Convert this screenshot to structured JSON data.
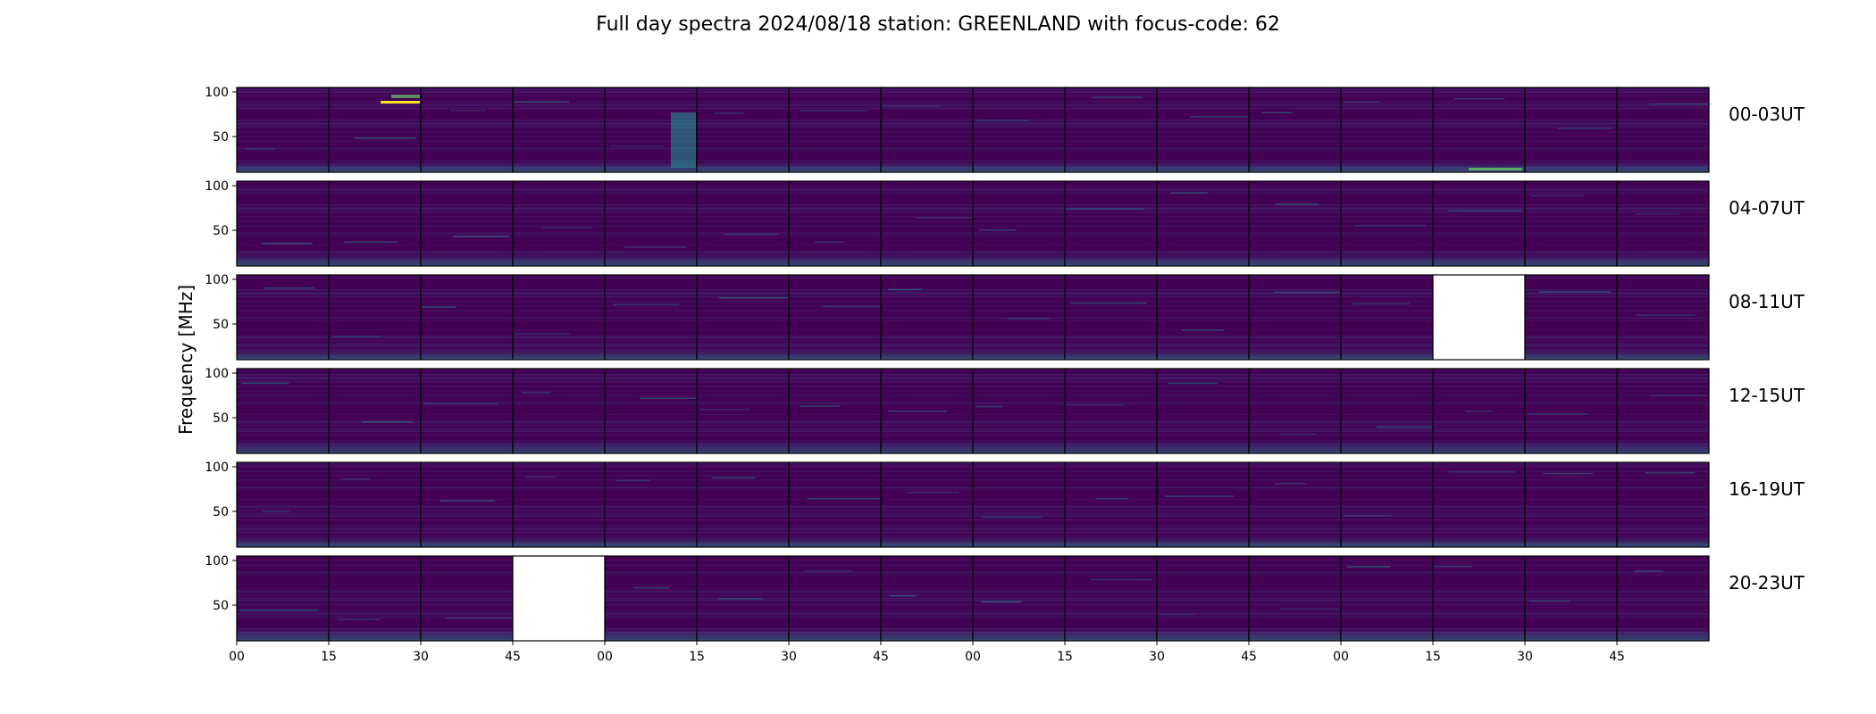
{
  "chart_data": {
    "type": "heatmap",
    "title": "Full day spectra 2024/08/18 station: GREENLAND with focus-code: 62",
    "ylabel": "Frequency [MHz]",
    "xlabel": "",
    "ylim": [
      10,
      105
    ],
    "y_ticks": [
      "100",
      "50"
    ],
    "y_tick_values": [
      100,
      50
    ],
    "x_ticks": [
      "00",
      "15",
      "30",
      "45",
      "00",
      "15",
      "30",
      "45",
      "00",
      "15",
      "30",
      "45",
      "00",
      "15",
      "30",
      "45"
    ],
    "panels_per_row": 16,
    "minutes_per_panel": 15,
    "colormap": "viridis",
    "rows": [
      {
        "label": "00-03UT",
        "missing_panels": []
      },
      {
        "label": "04-07UT",
        "missing_panels": []
      },
      {
        "label": "08-11UT",
        "missing_panels": [
          13
        ]
      },
      {
        "label": "12-15UT",
        "missing_panels": []
      },
      {
        "label": "16-19UT",
        "missing_panels": []
      },
      {
        "label": "20-23UT",
        "missing_panels": [
          3
        ]
      }
    ],
    "colors": {
      "background": "#440154",
      "mid": "#3b528b",
      "teal": "#21918c",
      "green": "#5ec962",
      "yellow": "#fde725",
      "missing": "#ffffff",
      "frame": "#000000"
    }
  }
}
